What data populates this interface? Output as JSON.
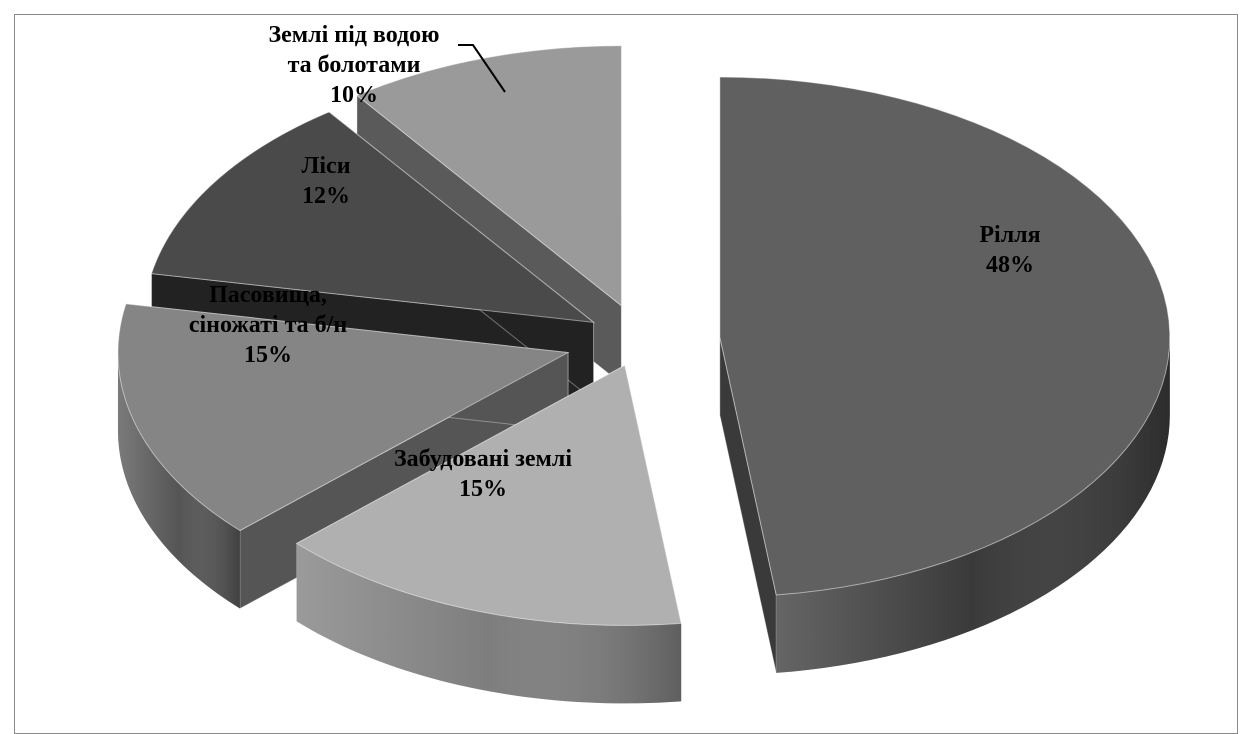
{
  "chart_data": {
    "type": "pie",
    "style": "3d-exploded",
    "categories": [
      "Рілля",
      "Забудовані землі",
      "Пасовища, сіножаті та б/н",
      "Ліси",
      "Землі під водою та болотами"
    ],
    "values": [
      48,
      15,
      15,
      12,
      10
    ],
    "unit": "%",
    "labels": [
      [
        "Рілля",
        "48%"
      ],
      [
        "Забудовані землі",
        "15%"
      ],
      [
        "Пасовища,",
        "сіножаті та б/н",
        "15%"
      ],
      [
        "Ліси",
        "12%"
      ],
      [
        "Землі під водою",
        "та болотами",
        "10%"
      ]
    ],
    "colors": [
      "#606060",
      "#b0b0b0",
      "#858585",
      "#4a4a4a",
      "#9a9a9a"
    ],
    "side_colors": [
      "#3a3a3a",
      "#7e7e7e",
      "#555555",
      "#222222",
      "#5a5a5a"
    ],
    "legend": "none",
    "grid": false
  }
}
